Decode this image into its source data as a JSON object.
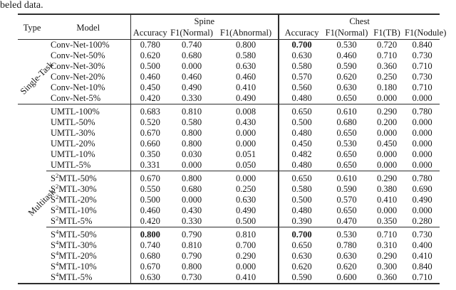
{
  "page": {
    "context_text": "beled data."
  },
  "colors": {
    "text": "#161616",
    "rule": "#2e2e2e",
    "background": "#ffffff"
  },
  "table": {
    "headers": {
      "type": "Type",
      "model": "Model",
      "spine": "Spine",
      "chest": "Chest",
      "spine_cols": [
        "Accuracy",
        "F1(Normal)",
        "F1(Abnormal)"
      ],
      "chest_cols": [
        "Accuracy",
        "F1(Normal)",
        "F1(TB)",
        "F1(Nodule)"
      ]
    },
    "groups": [
      {
        "type_label": "Single-Task",
        "sections": [
          {
            "rows": [
              {
                "model_pre": "Conv-Net-100%",
                "model_sup": "",
                "model_post": "",
                "values": [
                  "0.780",
                  "0.740",
                  "0.800",
                  "0.700",
                  "0.530",
                  "0.720",
                  "0.840"
                ],
                "bold": [
                  false,
                  false,
                  false,
                  true,
                  false,
                  false,
                  false
                ]
              },
              {
                "model_pre": "Conv-Net-50%",
                "model_sup": "",
                "model_post": "",
                "values": [
                  "0.620",
                  "0.680",
                  "0.580",
                  "0.630",
                  "0.460",
                  "0.710",
                  "0.730"
                ],
                "bold": [
                  false,
                  false,
                  false,
                  false,
                  false,
                  false,
                  false
                ]
              },
              {
                "model_pre": "Conv-Net-30%",
                "model_sup": "",
                "model_post": "",
                "values": [
                  "0.500",
                  "0.000",
                  "0.630",
                  "0.580",
                  "0.590",
                  "0.360",
                  "0.710"
                ],
                "bold": [
                  false,
                  false,
                  false,
                  false,
                  false,
                  false,
                  false
                ]
              },
              {
                "model_pre": "Conv-Net-20%",
                "model_sup": "",
                "model_post": "",
                "values": [
                  "0.460",
                  "0.460",
                  "0.460",
                  "0.570",
                  "0.620",
                  "0.250",
                  "0.730"
                ],
                "bold": [
                  false,
                  false,
                  false,
                  false,
                  false,
                  false,
                  false
                ]
              },
              {
                "model_pre": "Conv-Net-10%",
                "model_sup": "",
                "model_post": "",
                "values": [
                  "0.450",
                  "0.490",
                  "0.410",
                  "0.560",
                  "0.630",
                  "0.180",
                  "0.710"
                ],
                "bold": [
                  false,
                  false,
                  false,
                  false,
                  false,
                  false,
                  false
                ]
              },
              {
                "model_pre": "Conv-Net-5%",
                "model_sup": "",
                "model_post": "",
                "values": [
                  "0.420",
                  "0.330",
                  "0.490",
                  "0.480",
                  "0.650",
                  "0.000",
                  "0.000"
                ],
                "bold": [
                  false,
                  false,
                  false,
                  false,
                  false,
                  false,
                  false
                ]
              }
            ]
          }
        ]
      },
      {
        "type_label": "Multitask",
        "sections": [
          {
            "rows": [
              {
                "model_pre": "UMTL-100%",
                "model_sup": "",
                "model_post": "",
                "values": [
                  "0.683",
                  "0.810",
                  "0.008",
                  "0.650",
                  "0.610",
                  "0.290",
                  "0.780"
                ],
                "bold": [
                  false,
                  false,
                  false,
                  false,
                  false,
                  false,
                  false
                ]
              },
              {
                "model_pre": "UMTL-50%",
                "model_sup": "",
                "model_post": "",
                "values": [
                  "0.520",
                  "0.580",
                  "0.430",
                  "0.500",
                  "0.680",
                  "0.200",
                  "0.000"
                ],
                "bold": [
                  false,
                  false,
                  false,
                  false,
                  false,
                  false,
                  false
                ]
              },
              {
                "model_pre": "UMTL-30%",
                "model_sup": "",
                "model_post": "",
                "values": [
                  "0.670",
                  "0.800",
                  "0.000",
                  "0.480",
                  "0.650",
                  "0.000",
                  "0.000"
                ],
                "bold": [
                  false,
                  false,
                  false,
                  false,
                  false,
                  false,
                  false
                ]
              },
              {
                "model_pre": "UMTL-20%",
                "model_sup": "",
                "model_post": "",
                "values": [
                  "0.660",
                  "0.800",
                  "0.000",
                  "0.450",
                  "0.530",
                  "0.450",
                  "0.000"
                ],
                "bold": [
                  false,
                  false,
                  false,
                  false,
                  false,
                  false,
                  false
                ]
              },
              {
                "model_pre": "UMTL-10%",
                "model_sup": "",
                "model_post": "",
                "values": [
                  "0.350",
                  "0.030",
                  "0.051",
                  "0.482",
                  "0.650",
                  "0.000",
                  "0.000"
                ],
                "bold": [
                  false,
                  false,
                  false,
                  false,
                  false,
                  false,
                  false
                ]
              },
              {
                "model_pre": "UMTL-5%",
                "model_sup": "",
                "model_post": "",
                "values": [
                  "0.331",
                  "0.000",
                  "0.050",
                  "0.480",
                  "0.650",
                  "0.000",
                  "0.000"
                ],
                "bold": [
                  false,
                  false,
                  false,
                  false,
                  false,
                  false,
                  false
                ]
              }
            ]
          },
          {
            "rows": [
              {
                "model_pre": "S",
                "model_sup": "2",
                "model_post": "MTL-50%",
                "values": [
                  "0.670",
                  "0.800",
                  "0.000",
                  "0.650",
                  "0.610",
                  "0.290",
                  "0.780"
                ],
                "bold": [
                  false,
                  false,
                  false,
                  false,
                  false,
                  false,
                  false
                ]
              },
              {
                "model_pre": "S",
                "model_sup": "2",
                "model_post": "MTL-30%",
                "values": [
                  "0.550",
                  "0.680",
                  "0.250",
                  "0.580",
                  "0.590",
                  "0.380",
                  "0.690"
                ],
                "bold": [
                  false,
                  false,
                  false,
                  false,
                  false,
                  false,
                  false
                ]
              },
              {
                "model_pre": "S",
                "model_sup": "2",
                "model_post": "MTL-20%",
                "values": [
                  "0.500",
                  "0.000",
                  "0.630",
                  "0.500",
                  "0.570",
                  "0.410",
                  "0.490"
                ],
                "bold": [
                  false,
                  false,
                  false,
                  false,
                  false,
                  false,
                  false
                ]
              },
              {
                "model_pre": "S",
                "model_sup": "2",
                "model_post": "MTL-10%",
                "values": [
                  "0.460",
                  "0.430",
                  "0.490",
                  "0.480",
                  "0.650",
                  "0.000",
                  "0.000"
                ],
                "bold": [
                  false,
                  false,
                  false,
                  false,
                  false,
                  false,
                  false
                ]
              },
              {
                "model_pre": "S",
                "model_sup": "2",
                "model_post": "MTL-5%",
                "values": [
                  "0.420",
                  "0.330",
                  "0.500",
                  "0.390",
                  "0.470",
                  "0.350",
                  "0.280"
                ],
                "bold": [
                  false,
                  false,
                  false,
                  false,
                  false,
                  false,
                  false
                ]
              }
            ]
          },
          {
            "rows": [
              {
                "model_pre": "S",
                "model_sup": "4",
                "model_post": "MTL-50%",
                "values": [
                  "0.800",
                  "0.790",
                  "0.810",
                  "0.700",
                  "0.530",
                  "0.710",
                  "0.730"
                ],
                "bold": [
                  true,
                  false,
                  false,
                  true,
                  false,
                  false,
                  false
                ]
              },
              {
                "model_pre": "S",
                "model_sup": "4",
                "model_post": "MTL-30%",
                "values": [
                  "0.740",
                  "0.810",
                  "0.700",
                  "0.650",
                  "0.780",
                  "0.310",
                  "0.400"
                ],
                "bold": [
                  false,
                  false,
                  false,
                  false,
                  false,
                  false,
                  false
                ]
              },
              {
                "model_pre": "S",
                "model_sup": "4",
                "model_post": "MTL-20%",
                "values": [
                  "0.680",
                  "0.790",
                  "0.290",
                  "0.630",
                  "0.630",
                  "0.290",
                  "0.410"
                ],
                "bold": [
                  false,
                  false,
                  false,
                  false,
                  false,
                  false,
                  false
                ]
              },
              {
                "model_pre": "S",
                "model_sup": "4",
                "model_post": "MTL-10%",
                "values": [
                  "0.670",
                  "0.800",
                  "0.000",
                  "0.620",
                  "0.620",
                  "0.300",
                  "0.840"
                ],
                "bold": [
                  false,
                  false,
                  false,
                  false,
                  false,
                  false,
                  false
                ]
              },
              {
                "model_pre": "S",
                "model_sup": "4",
                "model_post": "MTL-5%",
                "values": [
                  "0.630",
                  "0.730",
                  "0.410",
                  "0.590",
                  "0.600",
                  "0.360",
                  "0.710"
                ],
                "bold": [
                  false,
                  false,
                  false,
                  false,
                  false,
                  false,
                  false
                ]
              }
            ]
          }
        ]
      }
    ]
  }
}
